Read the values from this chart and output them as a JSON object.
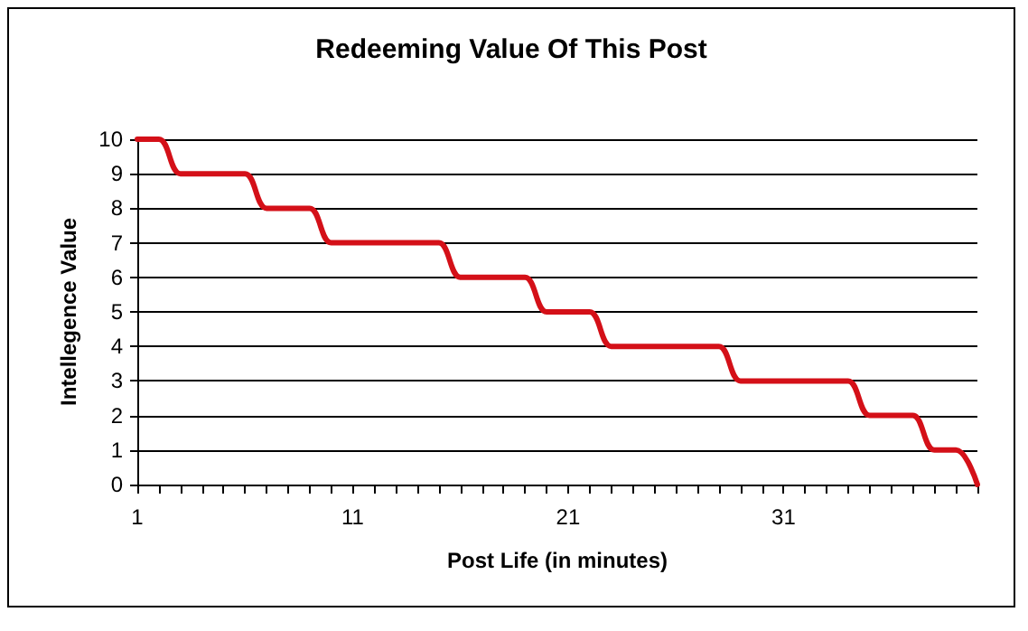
{
  "chart_data": {
    "type": "line",
    "title": "Redeeming Value Of This Post",
    "xlabel": "Post Life (in minutes)",
    "ylabel": "Intellegence Value",
    "x": [
      1,
      2,
      3,
      4,
      5,
      6,
      7,
      8,
      9,
      10,
      11,
      12,
      13,
      14,
      15,
      16,
      17,
      18,
      19,
      20,
      21,
      22,
      23,
      24,
      25,
      26,
      27,
      28,
      29,
      30,
      31,
      32,
      33,
      34,
      35,
      36,
      37,
      38,
      39,
      40
    ],
    "series": [
      {
        "color": "#d41018",
        "values": [
          10,
          10,
          9,
          9,
          9,
          9,
          8,
          8,
          8,
          7,
          7,
          7,
          7,
          7,
          7,
          6,
          6,
          6,
          6,
          5,
          5,
          5,
          4,
          4,
          4,
          4,
          4,
          4,
          3,
          3,
          3,
          3,
          3,
          3,
          2,
          2,
          2,
          1,
          1,
          0
        ]
      }
    ],
    "xlim": [
      1,
      40
    ],
    "xticks": [
      1,
      {
        "value": 2,
        "label": null
      },
      {
        "value": 3,
        "label": null
      },
      {
        "value": 4,
        "label": null
      },
      {
        "value": 5,
        "label": null
      },
      {
        "value": 6,
        "label": null
      },
      {
        "value": 7,
        "label": null
      },
      {
        "value": 8,
        "label": null
      },
      {
        "value": 9,
        "label": null
      },
      {
        "value": 10,
        "label": null
      },
      11,
      {
        "value": 12,
        "label": null
      },
      {
        "value": 13,
        "label": null
      },
      {
        "value": 14,
        "label": null
      },
      {
        "value": 15,
        "label": null
      },
      {
        "value": 16,
        "label": null
      },
      {
        "value": 17,
        "label": null
      },
      {
        "value": 18,
        "label": null
      },
      {
        "value": 19,
        "label": null
      },
      {
        "value": 20,
        "label": null
      },
      21,
      {
        "value": 22,
        "label": null
      },
      {
        "value": 23,
        "label": null
      },
      {
        "value": 24,
        "label": null
      },
      {
        "value": 25,
        "label": null
      },
      {
        "value": 26,
        "label": null
      },
      {
        "value": 27,
        "label": null
      },
      {
        "value": 28,
        "label": null
      },
      {
        "value": 29,
        "label": null
      },
      {
        "value": 30,
        "label": null
      },
      31,
      {
        "value": 32,
        "label": null
      },
      {
        "value": 33,
        "label": null
      },
      {
        "value": 34,
        "label": null
      },
      {
        "value": 35,
        "label": null
      },
      {
        "value": 36,
        "label": null
      },
      {
        "value": 37,
        "label": null
      },
      {
        "value": 38,
        "label": null
      },
      {
        "value": 39,
        "label": null
      },
      {
        "value": 40,
        "label": null
      }
    ],
    "ylim": [
      0,
      10
    ],
    "yticks": [
      0,
      1,
      2,
      3,
      4,
      5,
      6,
      7,
      8,
      9,
      10
    ],
    "grid": "y",
    "marker": "none",
    "line_style": "solid"
  }
}
